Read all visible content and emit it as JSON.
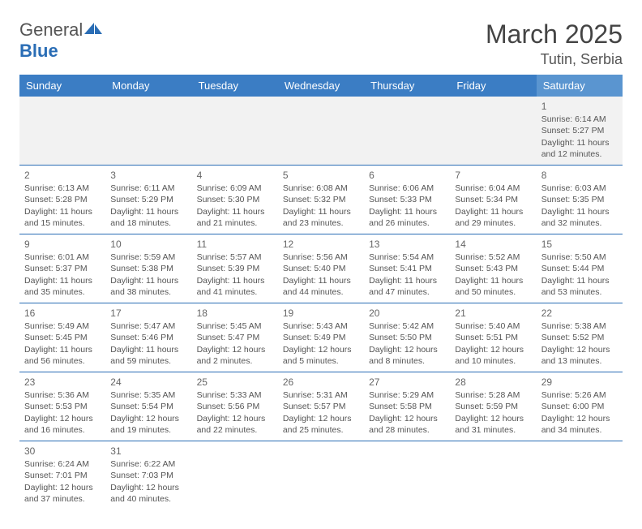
{
  "logo": {
    "text1": "General",
    "text2": "Blue"
  },
  "title": "March 2025",
  "location": "Tutin, Serbia",
  "colors": {
    "header_bg": "#3b7dc4",
    "header_bg_sat": "#5a95d0",
    "header_fg": "#ffffff",
    "row_divider": "#2a6db5",
    "empty_bg": "#f2f2f2",
    "text": "#555555"
  },
  "weekdays": [
    "Sunday",
    "Monday",
    "Tuesday",
    "Wednesday",
    "Thursday",
    "Friday",
    "Saturday"
  ],
  "grid": [
    [
      {
        "blank": true
      },
      {
        "blank": true
      },
      {
        "blank": true
      },
      {
        "blank": true
      },
      {
        "blank": true
      },
      {
        "blank": true
      },
      {
        "day": "1",
        "sunrise": "Sunrise: 6:14 AM",
        "sunset": "Sunset: 5:27 PM",
        "daylight": "Daylight: 11 hours and 12 minutes."
      }
    ],
    [
      {
        "day": "2",
        "sunrise": "Sunrise: 6:13 AM",
        "sunset": "Sunset: 5:28 PM",
        "daylight": "Daylight: 11 hours and 15 minutes."
      },
      {
        "day": "3",
        "sunrise": "Sunrise: 6:11 AM",
        "sunset": "Sunset: 5:29 PM",
        "daylight": "Daylight: 11 hours and 18 minutes."
      },
      {
        "day": "4",
        "sunrise": "Sunrise: 6:09 AM",
        "sunset": "Sunset: 5:30 PM",
        "daylight": "Daylight: 11 hours and 21 minutes."
      },
      {
        "day": "5",
        "sunrise": "Sunrise: 6:08 AM",
        "sunset": "Sunset: 5:32 PM",
        "daylight": "Daylight: 11 hours and 23 minutes."
      },
      {
        "day": "6",
        "sunrise": "Sunrise: 6:06 AM",
        "sunset": "Sunset: 5:33 PM",
        "daylight": "Daylight: 11 hours and 26 minutes."
      },
      {
        "day": "7",
        "sunrise": "Sunrise: 6:04 AM",
        "sunset": "Sunset: 5:34 PM",
        "daylight": "Daylight: 11 hours and 29 minutes."
      },
      {
        "day": "8",
        "sunrise": "Sunrise: 6:03 AM",
        "sunset": "Sunset: 5:35 PM",
        "daylight": "Daylight: 11 hours and 32 minutes."
      }
    ],
    [
      {
        "day": "9",
        "sunrise": "Sunrise: 6:01 AM",
        "sunset": "Sunset: 5:37 PM",
        "daylight": "Daylight: 11 hours and 35 minutes."
      },
      {
        "day": "10",
        "sunrise": "Sunrise: 5:59 AM",
        "sunset": "Sunset: 5:38 PM",
        "daylight": "Daylight: 11 hours and 38 minutes."
      },
      {
        "day": "11",
        "sunrise": "Sunrise: 5:57 AM",
        "sunset": "Sunset: 5:39 PM",
        "daylight": "Daylight: 11 hours and 41 minutes."
      },
      {
        "day": "12",
        "sunrise": "Sunrise: 5:56 AM",
        "sunset": "Sunset: 5:40 PM",
        "daylight": "Daylight: 11 hours and 44 minutes."
      },
      {
        "day": "13",
        "sunrise": "Sunrise: 5:54 AM",
        "sunset": "Sunset: 5:41 PM",
        "daylight": "Daylight: 11 hours and 47 minutes."
      },
      {
        "day": "14",
        "sunrise": "Sunrise: 5:52 AM",
        "sunset": "Sunset: 5:43 PM",
        "daylight": "Daylight: 11 hours and 50 minutes."
      },
      {
        "day": "15",
        "sunrise": "Sunrise: 5:50 AM",
        "sunset": "Sunset: 5:44 PM",
        "daylight": "Daylight: 11 hours and 53 minutes."
      }
    ],
    [
      {
        "day": "16",
        "sunrise": "Sunrise: 5:49 AM",
        "sunset": "Sunset: 5:45 PM",
        "daylight": "Daylight: 11 hours and 56 minutes."
      },
      {
        "day": "17",
        "sunrise": "Sunrise: 5:47 AM",
        "sunset": "Sunset: 5:46 PM",
        "daylight": "Daylight: 11 hours and 59 minutes."
      },
      {
        "day": "18",
        "sunrise": "Sunrise: 5:45 AM",
        "sunset": "Sunset: 5:47 PM",
        "daylight": "Daylight: 12 hours and 2 minutes."
      },
      {
        "day": "19",
        "sunrise": "Sunrise: 5:43 AM",
        "sunset": "Sunset: 5:49 PM",
        "daylight": "Daylight: 12 hours and 5 minutes."
      },
      {
        "day": "20",
        "sunrise": "Sunrise: 5:42 AM",
        "sunset": "Sunset: 5:50 PM",
        "daylight": "Daylight: 12 hours and 8 minutes."
      },
      {
        "day": "21",
        "sunrise": "Sunrise: 5:40 AM",
        "sunset": "Sunset: 5:51 PM",
        "daylight": "Daylight: 12 hours and 10 minutes."
      },
      {
        "day": "22",
        "sunrise": "Sunrise: 5:38 AM",
        "sunset": "Sunset: 5:52 PM",
        "daylight": "Daylight: 12 hours and 13 minutes."
      }
    ],
    [
      {
        "day": "23",
        "sunrise": "Sunrise: 5:36 AM",
        "sunset": "Sunset: 5:53 PM",
        "daylight": "Daylight: 12 hours and 16 minutes."
      },
      {
        "day": "24",
        "sunrise": "Sunrise: 5:35 AM",
        "sunset": "Sunset: 5:54 PM",
        "daylight": "Daylight: 12 hours and 19 minutes."
      },
      {
        "day": "25",
        "sunrise": "Sunrise: 5:33 AM",
        "sunset": "Sunset: 5:56 PM",
        "daylight": "Daylight: 12 hours and 22 minutes."
      },
      {
        "day": "26",
        "sunrise": "Sunrise: 5:31 AM",
        "sunset": "Sunset: 5:57 PM",
        "daylight": "Daylight: 12 hours and 25 minutes."
      },
      {
        "day": "27",
        "sunrise": "Sunrise: 5:29 AM",
        "sunset": "Sunset: 5:58 PM",
        "daylight": "Daylight: 12 hours and 28 minutes."
      },
      {
        "day": "28",
        "sunrise": "Sunrise: 5:28 AM",
        "sunset": "Sunset: 5:59 PM",
        "daylight": "Daylight: 12 hours and 31 minutes."
      },
      {
        "day": "29",
        "sunrise": "Sunrise: 5:26 AM",
        "sunset": "Sunset: 6:00 PM",
        "daylight": "Daylight: 12 hours and 34 minutes."
      }
    ],
    [
      {
        "day": "30",
        "sunrise": "Sunrise: 6:24 AM",
        "sunset": "Sunset: 7:01 PM",
        "daylight": "Daylight: 12 hours and 37 minutes."
      },
      {
        "day": "31",
        "sunrise": "Sunrise: 6:22 AM",
        "sunset": "Sunset: 7:03 PM",
        "daylight": "Daylight: 12 hours and 40 minutes."
      },
      {
        "blank": true
      },
      {
        "blank": true
      },
      {
        "blank": true
      },
      {
        "blank": true
      },
      {
        "blank": true
      }
    ]
  ]
}
